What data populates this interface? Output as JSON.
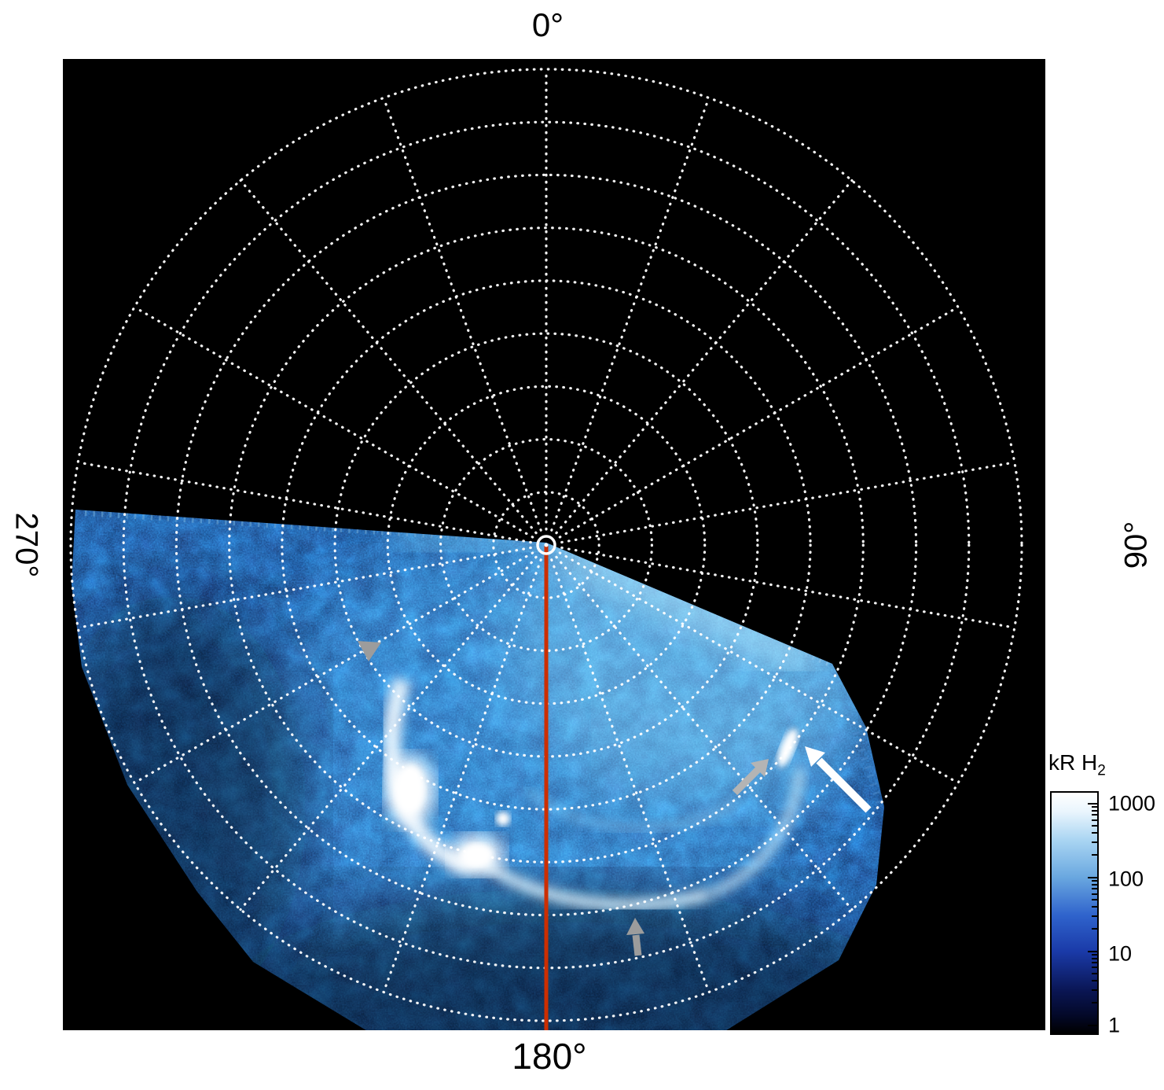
{
  "figure": {
    "description": "Polar projection map of ultraviolet auroral H2 emission on a black background, with dotted white polar coordinate grid, a red 180-degree meridian line, a white pole marker, annotation arrows and a logarithmic intensity colorbar",
    "background_color": "#ffffff",
    "plot_background_color": "#000000"
  },
  "polar_axis": {
    "top_label": "0°",
    "right_label": "90°",
    "bottom_label": "180°",
    "left_label": "270°"
  },
  "colorbar": {
    "title_main": "kR H",
    "title_sub": "2",
    "ticks": [
      "1000",
      "100",
      "10",
      "1"
    ],
    "scale": "log"
  },
  "chart_data": {
    "type": "heatmap",
    "projection": "polar",
    "angle_labels": [
      "0°",
      "90°",
      "180°",
      "270°"
    ],
    "angle_grid_step_deg": 20,
    "radial_grid_rings": 9,
    "grid_style": "dotted white",
    "colorbar": {
      "title": "kR H₂",
      "scale": "log",
      "ticks": [
        1000,
        100,
        10,
        1
      ],
      "range": [
        1,
        1000
      ],
      "colormap": [
        "#000000",
        "#081048",
        "#1a3aa8",
        "#4a8bd8",
        "#b8dcf6",
        "#ffffff"
      ]
    },
    "meridian_line": {
      "angle_deg": 180,
      "color": "#cc2e00"
    },
    "pole_marker": {
      "shape": "open circle",
      "color": "#ffffff"
    },
    "data_coverage_sector_deg": [
      113,
      274
    ],
    "features": [
      {
        "label": "main auroral oval arc",
        "type": "bright-arc",
        "angle_deg_range": [
          130,
          265
        ],
        "radius_frac_range": [
          0.28,
          0.58
        ],
        "peak_intensity_kR": 800
      },
      {
        "label": "dusk bright patch",
        "type": "spot",
        "angle_deg": 205,
        "radius_frac": 0.5,
        "peak_intensity_kR": 1000
      },
      {
        "label": "second dusk bright patch",
        "type": "spot",
        "angle_deg": 193,
        "radius_frac": 0.57,
        "peak_intensity_kR": 1000
      },
      {
        "label": "dawn bright spot",
        "type": "spot",
        "angle_deg": 118,
        "radius_frac": 0.52,
        "peak_intensity_kR": 900
      },
      {
        "label": "diffuse polar emission",
        "type": "diffuse",
        "angle_deg_range": [
          110,
          230
        ],
        "radius_frac_range": [
          0,
          0.35
        ],
        "intensity_kR": 150
      },
      {
        "label": "noisy background emission",
        "type": "noise",
        "angle_deg_range": [
          113,
          274
        ],
        "radius_frac_range": [
          0,
          1
        ],
        "intensity_kR": 3
      }
    ],
    "annotations": [
      {
        "name": "white-arrow",
        "color": "#ffffff",
        "angle_deg": 122,
        "radius_frac": 0.52,
        "direction": "points up-left at dawn bright spot"
      },
      {
        "name": "gray-arrow-dawn",
        "color": "#b4b4b4",
        "angle_deg": 128,
        "radius_frac": 0.5,
        "direction": "points up-right at dawn bright spot"
      },
      {
        "name": "gray-triangle-dusk",
        "color": "#9c9c9c",
        "angle_deg": 240,
        "radius_frac": 0.42,
        "direction": "points down at faint dusk arc"
      },
      {
        "name": "gray-arrow-south",
        "color": "#9c9c9c",
        "angle_deg": 168,
        "radius_frac": 0.85,
        "direction": "points up at equatorward arc near the 180° meridian"
      }
    ]
  }
}
